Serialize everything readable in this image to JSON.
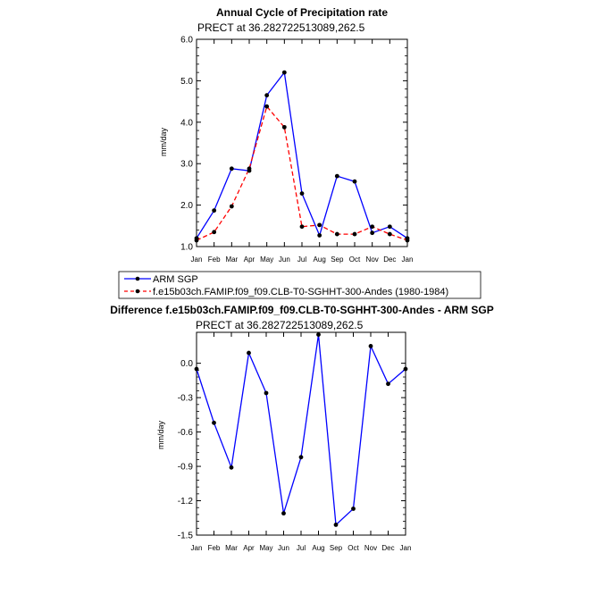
{
  "chart_data": [
    {
      "type": "line",
      "title": "Annual Cycle of Precipitation rate",
      "subtitle": "PRECT at 36.282722513089,262.5",
      "xlabel": "",
      "ylabel": "mm/day",
      "categories": [
        "Jan",
        "Feb",
        "Mar",
        "Apr",
        "May",
        "Jun",
        "Jul",
        "Aug",
        "Sep",
        "Oct",
        "Nov",
        "Dec",
        "Jan"
      ],
      "ylim": [
        1.0,
        6.0
      ],
      "yticks": [
        "1.0",
        "2.0",
        "3.0",
        "4.0",
        "5.0",
        "6.0"
      ],
      "series": [
        {
          "name": "ARM SGP",
          "color": "#0000ff",
          "dash": "solid",
          "values": [
            1.2,
            1.87,
            2.88,
            2.83,
            4.65,
            5.2,
            2.28,
            1.27,
            2.7,
            2.57,
            1.33,
            1.48,
            1.2
          ]
        },
        {
          "name": "f.e15b03ch.FAMIP.f09_f09.CLB-T0-SGHHT-300-Andes (1980-1984)",
          "color": "#ff0000",
          "dash": "dashed",
          "values": [
            1.15,
            1.35,
            1.97,
            2.88,
            4.38,
            3.88,
            1.48,
            1.52,
            1.3,
            1.3,
            1.48,
            1.3,
            1.15
          ]
        }
      ],
      "legend": {
        "placement": "bottom-left",
        "entries": [
          "ARM SGP",
          "f.e15b03ch.FAMIP.f09_f09.CLB-T0-SGHHT-300-Andes (1980-1984)"
        ]
      }
    },
    {
      "type": "line",
      "title": "Difference f.e15b03ch.FAMIP.f09_f09.CLB-T0-SGHHT-300-Andes - ARM SGP",
      "subtitle": "PRECT at 36.282722513089,262.5",
      "xlabel": "",
      "ylabel": "mm/day",
      "categories": [
        "Jan",
        "Feb",
        "Mar",
        "Apr",
        "May",
        "Jun",
        "Jul",
        "Aug",
        "Sep",
        "Oct",
        "Nov",
        "Dec",
        "Jan"
      ],
      "ylim": [
        -1.5,
        0.27
      ],
      "yticks": [
        "-1.5",
        "-1.2",
        "-0.9",
        "-0.6",
        "-0.3",
        "0.0"
      ],
      "series": [
        {
          "name": "Difference",
          "color": "#0000ff",
          "dash": "solid",
          "values": [
            -0.05,
            -0.52,
            -0.91,
            0.09,
            -0.26,
            -1.31,
            -0.82,
            0.25,
            -1.41,
            -1.27,
            0.15,
            -0.18,
            -0.05
          ]
        }
      ]
    }
  ]
}
